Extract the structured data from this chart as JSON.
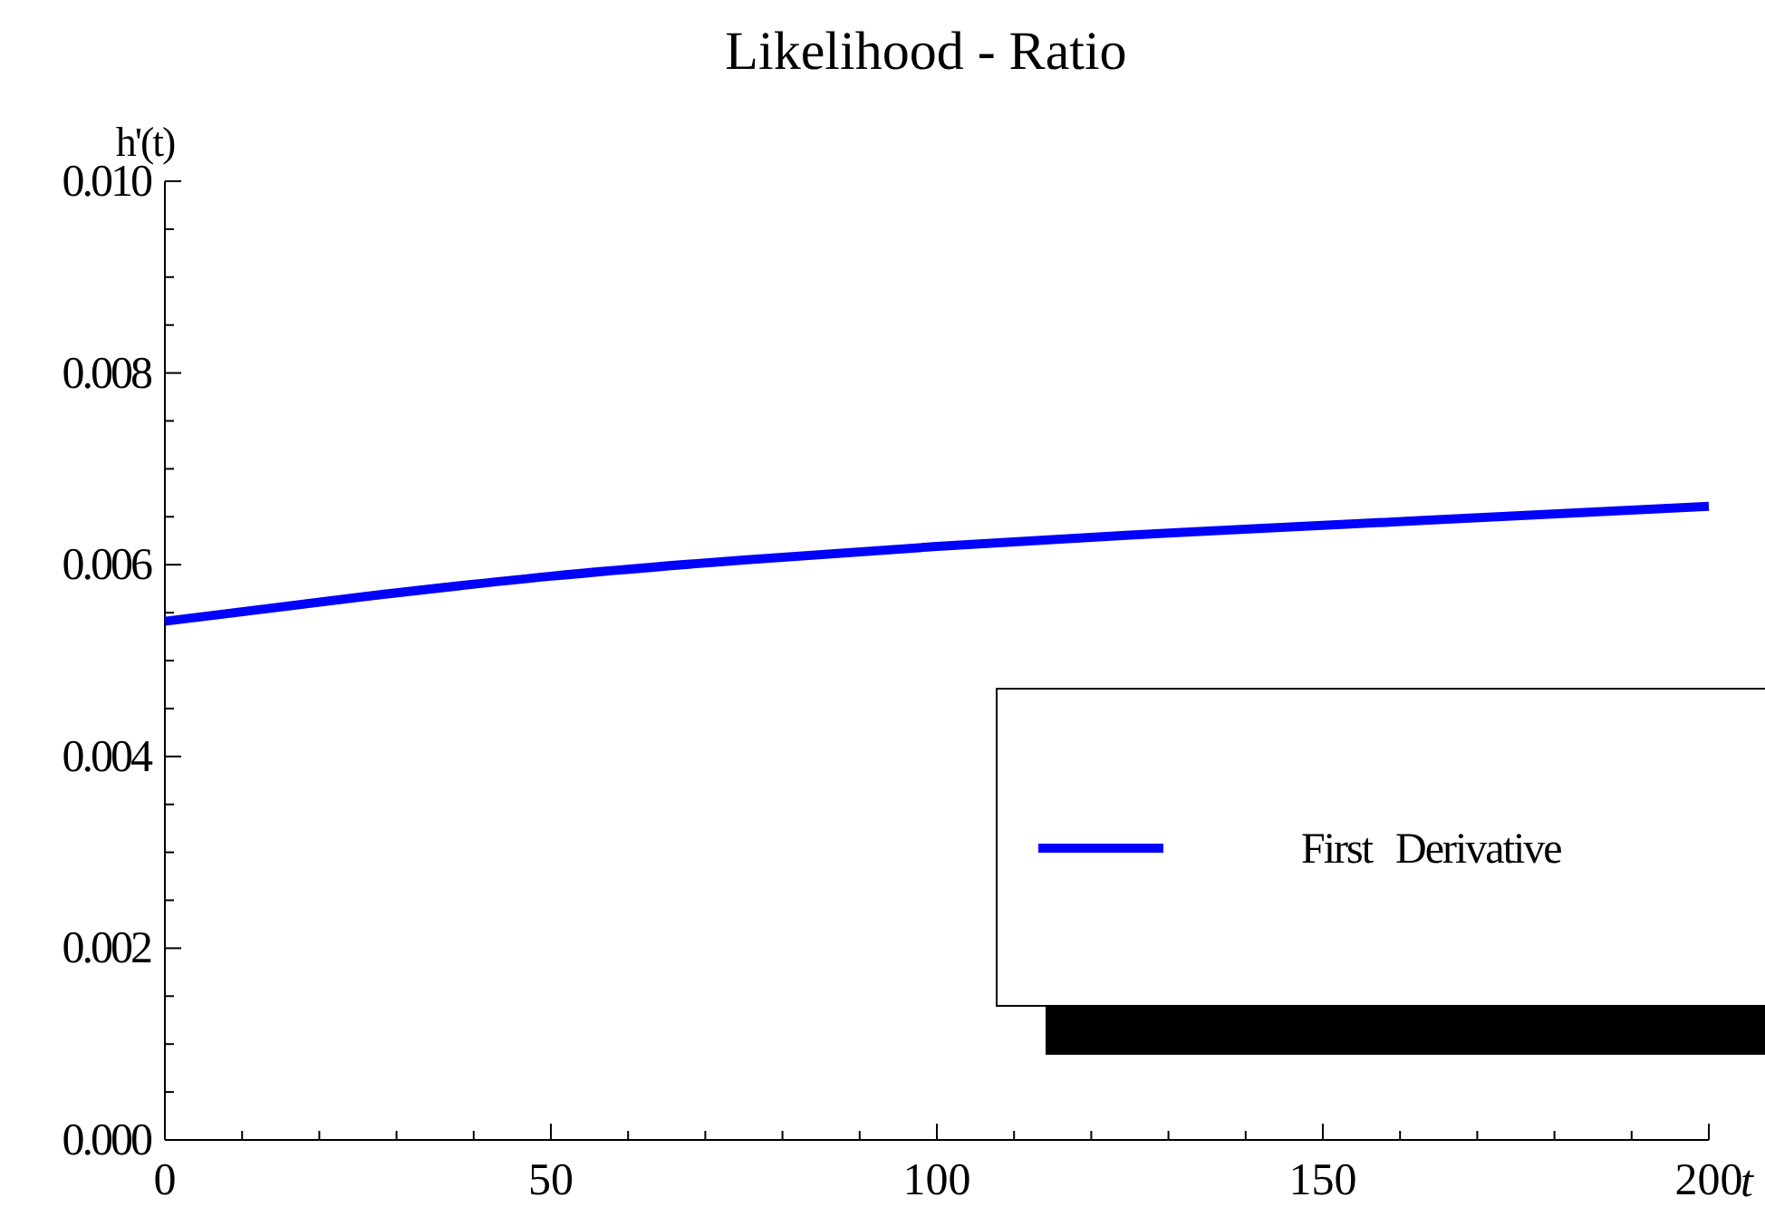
{
  "chart_data": {
    "type": "line",
    "title": "Likelihood - Ratio",
    "xlabel": "t",
    "ylabel": "h'(t)",
    "x": [
      0,
      25,
      50,
      75,
      100,
      125,
      150,
      175,
      200
    ],
    "series": [
      {
        "name": "First Derivative",
        "color": "#0000ff",
        "values": [
          0.00541,
          0.00566,
          0.00588,
          0.00605,
          0.00619,
          0.00631,
          0.00641,
          0.00651,
          0.00661
        ]
      }
    ],
    "xlim": [
      0,
      200
    ],
    "ylim": [
      0,
      0.01
    ],
    "xticks": [
      0,
      {
        "value": 10,
        "label": null
      },
      {
        "value": 20,
        "label": null
      },
      {
        "value": 30,
        "label": null
      },
      {
        "value": 40,
        "label": null
      },
      50,
      {
        "value": 60,
        "label": null
      },
      {
        "value": 70,
        "label": null
      },
      {
        "value": 80,
        "label": null
      },
      {
        "value": 90,
        "label": null
      },
      100,
      {
        "value": 110,
        "label": null
      },
      {
        "value": 120,
        "label": null
      },
      {
        "value": 130,
        "label": null
      },
      {
        "value": 140,
        "label": null
      },
      150,
      {
        "value": 160,
        "label": null
      },
      {
        "value": 170,
        "label": null
      },
      {
        "value": 180,
        "label": null
      },
      {
        "value": 190,
        "label": null
      },
      200
    ],
    "yticks": [
      {
        "value": 0,
        "label": "0.000"
      },
      {
        "value": 0.0005,
        "label": null
      },
      {
        "value": 0.001,
        "label": null
      },
      {
        "value": 0.0015,
        "label": null
      },
      {
        "value": 0.002,
        "label": "0.002"
      },
      {
        "value": 0.0025,
        "label": null
      },
      {
        "value": 0.003,
        "label": null
      },
      {
        "value": 0.0035,
        "label": null
      },
      {
        "value": 0.004,
        "label": "0.004"
      },
      {
        "value": 0.0045,
        "label": null
      },
      {
        "value": 0.005,
        "label": null
      },
      {
        "value": 0.0055,
        "label": null
      },
      {
        "value": 0.006,
        "label": "0.006"
      },
      {
        "value": 0.0065,
        "label": null
      },
      {
        "value": 0.007,
        "label": null
      },
      {
        "value": 0.0075,
        "label": null
      },
      {
        "value": 0.008,
        "label": "0.008"
      },
      {
        "value": 0.0085,
        "label": null
      },
      {
        "value": 0.009,
        "label": null
      },
      {
        "value": 0.0095,
        "label": null
      },
      {
        "value": 0.01,
        "label": "0.010"
      }
    ],
    "legend": "bottom right",
    "grid": false,
    "marker": "none",
    "line_style": "solid"
  }
}
